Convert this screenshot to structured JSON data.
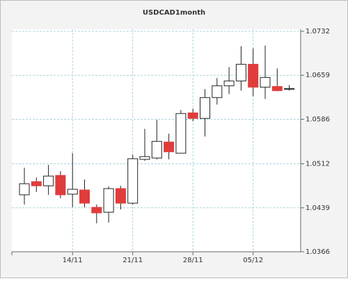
{
  "chart_data": {
    "type": "candlestick",
    "title": "USDCAD1month",
    "categories": [
      null,
      null,
      null,
      null,
      "14/11",
      null,
      null,
      null,
      null,
      "21/11",
      null,
      null,
      null,
      null,
      "28/11",
      null,
      null,
      null,
      null,
      "05/12",
      null,
      null,
      null
    ],
    "open": [
      1.04606,
      1.04825,
      1.04755,
      1.04928,
      1.04617,
      1.04686,
      1.04398,
      1.04317,
      1.04709,
      1.04467,
      1.05194,
      1.05217,
      1.05482,
      1.05297,
      1.05966,
      1.05874,
      1.0622,
      1.06416,
      1.06496,
      1.06773,
      1.06393,
      1.06404,
      1.06358
    ],
    "high": [
      1.05055,
      1.04894,
      1.05101,
      1.04998,
      1.05297,
      1.04859,
      1.04444,
      1.04744,
      1.04755,
      1.05274,
      1.05701,
      1.05851,
      1.0562,
      1.06012,
      1.06035,
      1.06358,
      1.06543,
      1.06727,
      1.07073,
      1.07038,
      1.07084,
      1.06704,
      1.06427
    ],
    "low": [
      1.04444,
      1.04652,
      1.04606,
      1.04548,
      1.04398,
      1.04398,
      1.04133,
      1.04144,
      1.04363,
      1.04444,
      1.0517,
      1.05194,
      1.05194,
      1.05297,
      1.05828,
      1.05574,
      1.06104,
      1.06277,
      1.06335,
      1.06243,
      1.06197,
      1.06323,
      1.06335
    ],
    "close": [
      1.0479,
      1.04755,
      1.04917,
      1.04606,
      1.04698,
      1.04467,
      1.04306,
      1.04709,
      1.04467,
      1.05205,
      1.0524,
      1.05493,
      1.0532,
      1.05955,
      1.05874,
      1.0622,
      1.06416,
      1.06496,
      1.06773,
      1.06393,
      1.06554,
      1.06335,
      1.0637
    ],
    "up_color": "#ffffff",
    "down_color": "#e03c3c",
    "ylim": [
      1.0366,
      1.0732
    ],
    "yticks": [
      1.0366,
      1.0439,
      1.0512,
      1.0586,
      1.0659,
      1.0732
    ],
    "grid": true
  }
}
